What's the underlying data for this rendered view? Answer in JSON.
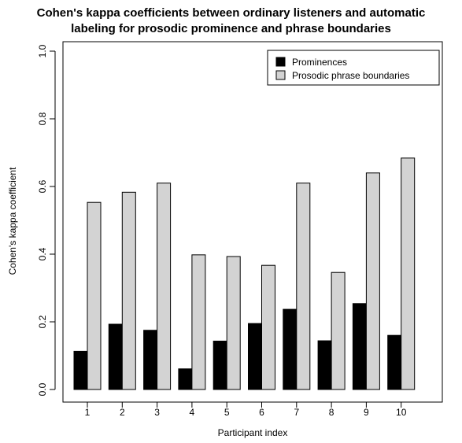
{
  "chart_data": {
    "type": "bar",
    "title_lines": [
      "Cohen's kappa coefficients between ordinary listeners and automatic",
      "labeling for prosodic prominence and phrase boundaries"
    ],
    "xlabel": "Participant index",
    "ylabel": "Cohen's kappa coefficient",
    "categories": [
      "1",
      "2",
      "3",
      "4",
      "5",
      "6",
      "7",
      "8",
      "9",
      "10"
    ],
    "ylim": [
      0.0,
      1.0
    ],
    "yticks": [
      0.0,
      0.2,
      0.4,
      0.6,
      0.8,
      1.0
    ],
    "ytick_labels": [
      "0.0",
      "0.2",
      "0.4",
      "0.6",
      "0.8",
      "1.0"
    ],
    "grid": false,
    "legend_position": "top-right",
    "series": [
      {
        "name": "Prominences",
        "color": "#000000",
        "values": [
          0.113,
          0.193,
          0.175,
          0.061,
          0.143,
          0.195,
          0.237,
          0.144,
          0.254,
          0.16
        ]
      },
      {
        "name": "Prosodic phrase boundaries",
        "color": "#d3d3d3",
        "values": [
          0.553,
          0.583,
          0.61,
          0.398,
          0.393,
          0.367,
          0.61,
          0.346,
          0.64,
          0.684
        ]
      }
    ]
  }
}
